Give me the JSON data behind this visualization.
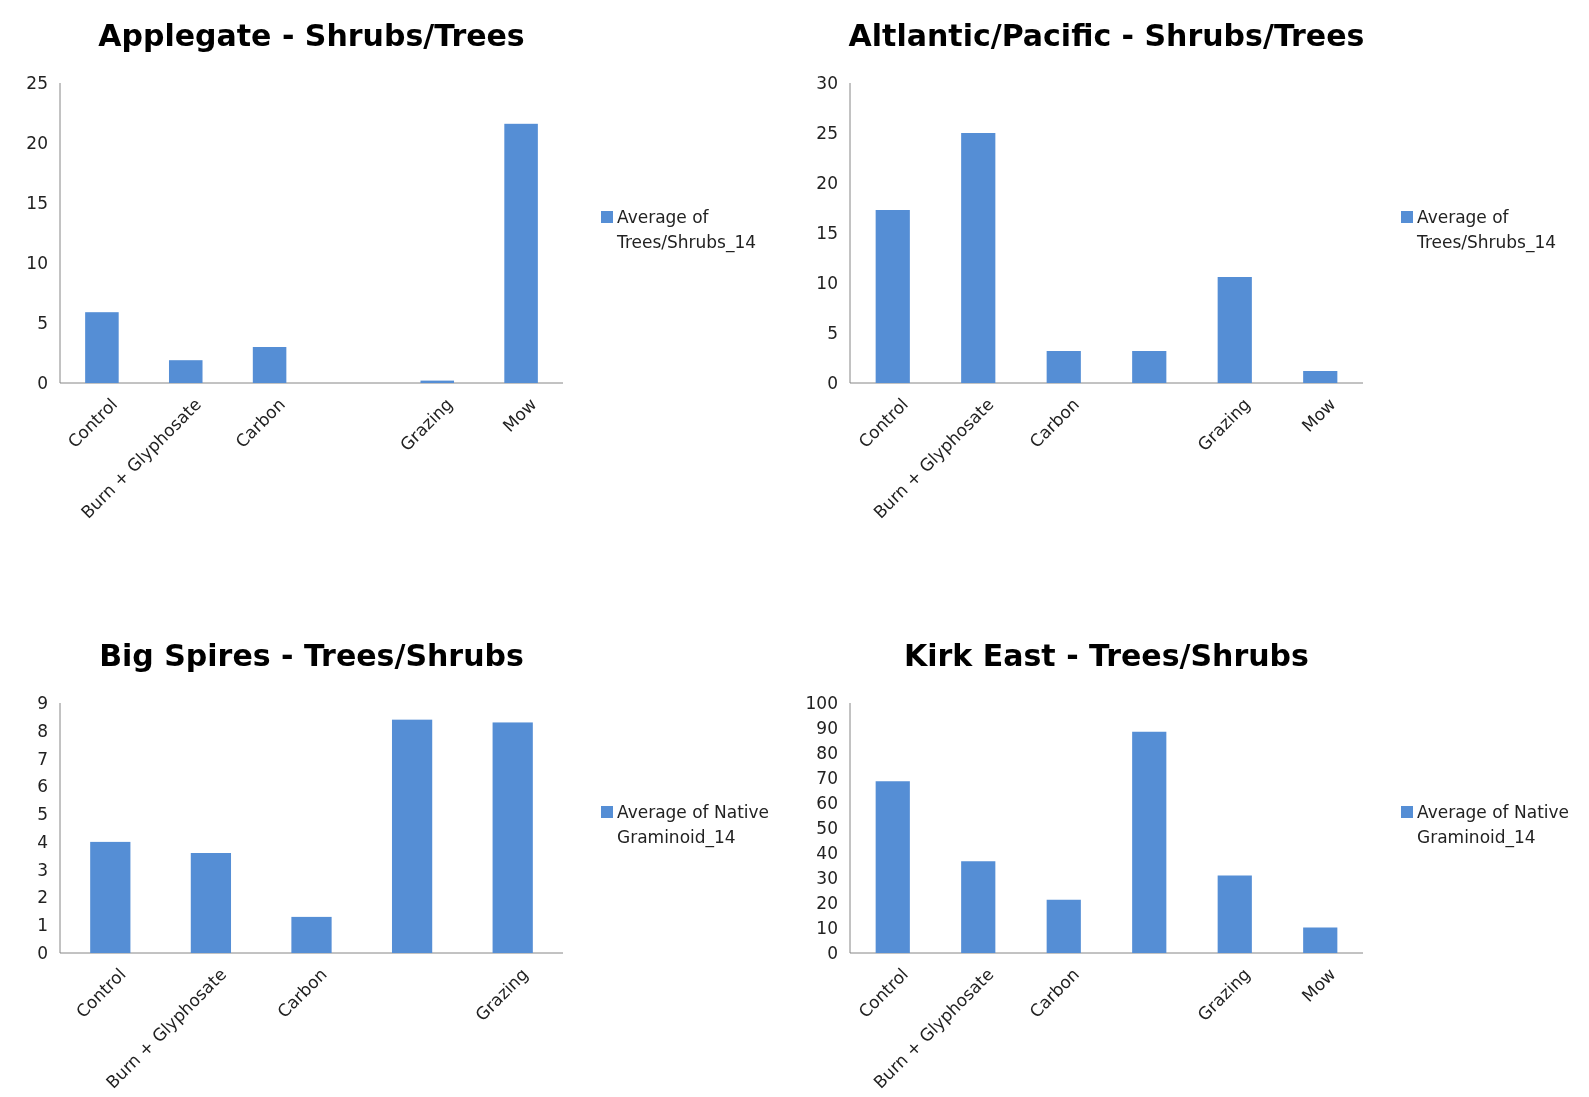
{
  "chart_data": [
    {
      "type": "bar",
      "title": "Applegate - Shrubs/Trees",
      "categories": [
        "Control",
        "Burn + Glyphosate",
        "Carbon",
        null,
        "Grazing",
        "Mow"
      ],
      "series": [
        {
          "name": "Average of Trees/Shrubs_14",
          "color": "#558ed5",
          "values": [
            5.9,
            1.9,
            3.0,
            0,
            0.2,
            21.6
          ]
        }
      ],
      "ylim": [
        0,
        25
      ],
      "yticks": [
        0,
        5,
        10,
        15,
        20,
        25
      ],
      "legend": "right",
      "grid": false
    },
    {
      "type": "bar",
      "title": "Altlantic/Pacific - Shrubs/Trees",
      "categories": [
        "Control",
        "Burn + Glyphosate",
        "Carbon",
        null,
        "Grazing",
        "Mow"
      ],
      "series": [
        {
          "name": "Average of Trees/Shrubs_14",
          "color": "#558ed5",
          "values": [
            17.3,
            25.0,
            3.2,
            3.2,
            10.6,
            1.2
          ]
        }
      ],
      "ylim": [
        0,
        30
      ],
      "yticks": [
        0,
        5,
        10,
        15,
        20,
        25,
        30
      ],
      "legend": "right",
      "grid": false
    },
    {
      "type": "bar",
      "title": "Big Spires - Trees/Shrubs",
      "categories": [
        "Control",
        "Burn + Glyphosate",
        "Carbon",
        null,
        "Grazing"
      ],
      "series": [
        {
          "name": "Average of Native Graminoid_14",
          "color": "#558ed5",
          "values": [
            4.0,
            3.6,
            1.3,
            8.4,
            8.3
          ]
        }
      ],
      "ylim": [
        0,
        9
      ],
      "yticks": [
        0,
        1,
        2,
        3,
        4,
        5,
        6,
        7,
        8,
        9
      ],
      "legend": "right",
      "grid": false
    },
    {
      "type": "bar",
      "title": "Kirk East - Trees/Shrubs",
      "categories": [
        "Control",
        "Burn + Glyphosate",
        "Carbon",
        null,
        "Grazing",
        "Mow"
      ],
      "series": [
        {
          "name": "Average of Native Graminoid_14",
          "color": "#558ed5",
          "values": [
            68.7,
            36.7,
            21.3,
            88.5,
            31.0,
            10.2
          ]
        }
      ],
      "ylim": [
        0,
        100
      ],
      "yticks": [
        0,
        10,
        20,
        30,
        40,
        50,
        60,
        70,
        80,
        90,
        100
      ],
      "legend": "right",
      "grid": false
    }
  ]
}
